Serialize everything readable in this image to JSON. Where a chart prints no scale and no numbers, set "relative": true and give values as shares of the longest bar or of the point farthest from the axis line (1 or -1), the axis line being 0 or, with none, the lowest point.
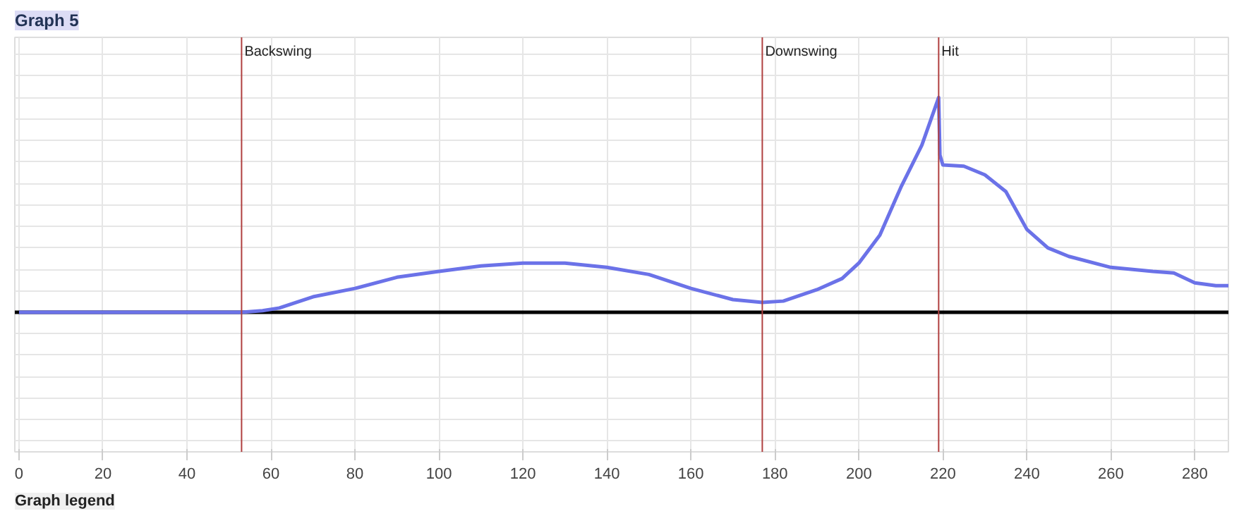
{
  "chart_data": {
    "type": "line",
    "title": "Graph 5",
    "relative": true,
    "x": [
      0,
      20,
      50,
      53,
      58,
      62,
      70,
      80,
      90,
      100,
      110,
      120,
      130,
      140,
      150,
      160,
      170,
      177,
      182,
      190,
      196,
      200,
      205,
      210,
      215,
      219,
      219.3,
      220,
      225,
      230,
      235,
      240,
      245,
      250,
      260,
      270,
      275,
      280,
      285,
      288
    ],
    "series": [
      {
        "color": "#6b72e8",
        "values": [
          0,
          0,
          0,
          0,
          0.007,
          0.02,
          0.072,
          0.111,
          0.163,
          0.19,
          0.216,
          0.229,
          0.229,
          0.209,
          0.176,
          0.111,
          0.059,
          0.046,
          0.052,
          0.105,
          0.157,
          0.229,
          0.359,
          0.582,
          0.778,
          1,
          0.732,
          0.686,
          0.68,
          0.64,
          0.562,
          0.386,
          0.3,
          0.26,
          0.209,
          0.19,
          0.183,
          0.137,
          0.124,
          0.124
        ]
      }
    ],
    "xlim": [
      -1,
      288
    ],
    "xticks": [
      0,
      20,
      40,
      60,
      80,
      100,
      120,
      140,
      160,
      180,
      200,
      220,
      240,
      260,
      280
    ],
    "ref_lines": [
      {
        "axis": "x",
        "value": 53,
        "label": "Backswing",
        "color": "#b04040"
      },
      {
        "axis": "x",
        "value": 177,
        "label": "Downswing",
        "color": "#b04040"
      },
      {
        "axis": "x",
        "value": 219,
        "label": "Hit",
        "color": "#b04040"
      }
    ],
    "annotations": [
      "Graph legend"
    ],
    "grid": true,
    "tick_labels": "x",
    "marker": "none",
    "line_style": "solid"
  }
}
